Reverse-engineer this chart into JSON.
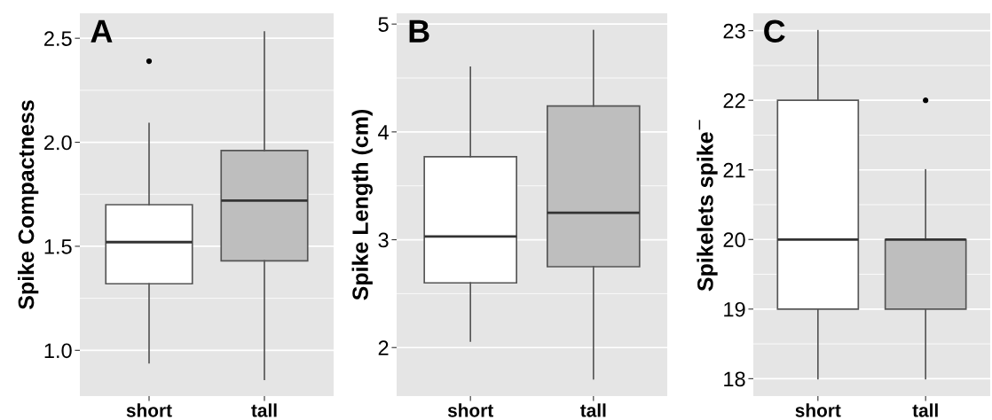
{
  "chart_data": [
    {
      "type": "box",
      "title": "A",
      "ylabel": "Spike Compactness",
      "categories": [
        "short",
        "tall"
      ],
      "colors": [
        "#ffffff",
        "#bebebe"
      ],
      "boxes": [
        {
          "low": 0.94,
          "q1": 1.32,
          "median": 1.52,
          "q3": 1.7,
          "high": 2.09,
          "outliers": [
            2.39
          ]
        },
        {
          "low": 0.86,
          "q1": 1.43,
          "median": 1.72,
          "q3": 1.96,
          "high": 2.53
        }
      ],
      "ylim": [
        0.78,
        2.62
      ],
      "yticks": [
        {
          "value": 1.0,
          "label": "1.0"
        },
        1.5,
        {
          "value": 2.0,
          "label": "2.0"
        },
        2.5
      ],
      "grid": "y"
    },
    {
      "type": "box",
      "title": "B",
      "ylabel": "Spike Length (cm)",
      "categories": [
        "short",
        "tall"
      ],
      "colors": [
        "#ffffff",
        "#bebebe"
      ],
      "boxes": [
        {
          "low": 2.06,
          "q1": 2.6,
          "median": 3.03,
          "q3": 3.77,
          "high": 4.6
        },
        {
          "low": 1.71,
          "q1": 2.75,
          "median": 3.25,
          "q3": 4.24,
          "high": 4.94
        }
      ],
      "ylim": [
        1.55,
        5.1
      ],
      "yticks": [
        2,
        3,
        4,
        5
      ],
      "grid": "y"
    },
    {
      "type": "box",
      "title": "C",
      "ylabel": "Spikelets spike$^{−}$",
      "categories": [
        "short",
        "tall"
      ],
      "colors": [
        "#ffffff",
        "#bebebe"
      ],
      "boxes": [
        {
          "low": 18,
          "q1": 19,
          "median": 20,
          "q3": 22,
          "high": 23
        },
        {
          "low": 18,
          "q1": 19,
          "median": 20,
          "q3": 20,
          "high": 21,
          "outliers": [
            22
          ]
        }
      ],
      "ylim": [
        17.75,
        23.25
      ],
      "yticks": [
        18,
        19,
        20,
        21,
        22,
        23
      ],
      "grid": "y"
    }
  ]
}
